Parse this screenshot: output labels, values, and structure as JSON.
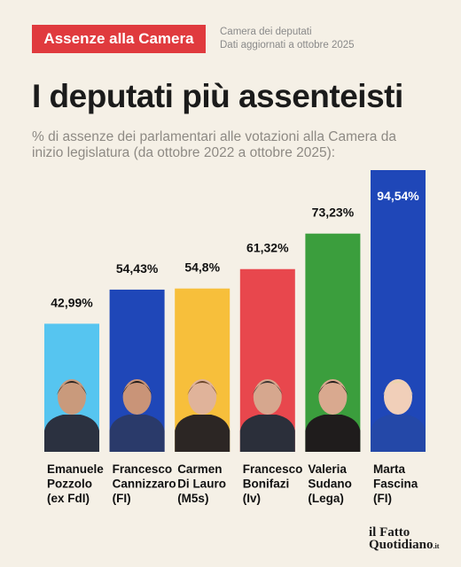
{
  "header": {
    "badge": "Assenze alla Camera",
    "source_line1": "Camera dei deputati",
    "source_line2": "Dati aggiornati a ottobre 2025"
  },
  "title": "I deputati più assenteisti",
  "subtitle": "% di assenze dei parlamentari alle votazioni alla Camera da inizio legislatura (da ottobre 2022 a ottobre 2025):",
  "logo": {
    "line1": "il Fatto",
    "line2": "Quotidiano",
    "suffix": ".it"
  },
  "chart_data": {
    "type": "bar",
    "title": "I deputati più assenteisti",
    "categories": [
      "Emanuele Pozzolo (ex FdI)",
      "Francesco Cannizzaro (FI)",
      "Carmen Di Lauro (M5s)",
      "Francesco Bonifazi (Iv)",
      "Valeria Sudano (Lega)",
      "Marta Fascina (FI)"
    ],
    "labels": [
      [
        "Emanuele",
        "Pozzolo",
        "(ex FdI)"
      ],
      [
        "Francesco",
        "Cannizzaro",
        "(FI)"
      ],
      [
        "Carmen",
        "Di Lauro",
        "(M5s)"
      ],
      [
        "Francesco",
        "Bonifazi",
        "(Iv)"
      ],
      [
        "Valeria",
        "Sudano",
        "(Lega)"
      ],
      [
        "Marta",
        "Fascina",
        "(FI)"
      ]
    ],
    "values": [
      42.99,
      54.43,
      54.8,
      61.32,
      73.23,
      94.54
    ],
    "value_labels": [
      "42,99%",
      "54,43%",
      "54,8%",
      "61,32%",
      "73,23%",
      "94,54%"
    ],
    "colors": [
      "#56c5f0",
      "#1f47b8",
      "#f7bf3b",
      "#e8474d",
      "#3b9e3d",
      "#1f47b8"
    ],
    "value_label_colors": [
      "#111111",
      "#111111",
      "#111111",
      "#111111",
      "#111111",
      "#ffffff"
    ],
    "ylim": [
      0,
      100
    ],
    "grid": false,
    "legend": "none"
  }
}
